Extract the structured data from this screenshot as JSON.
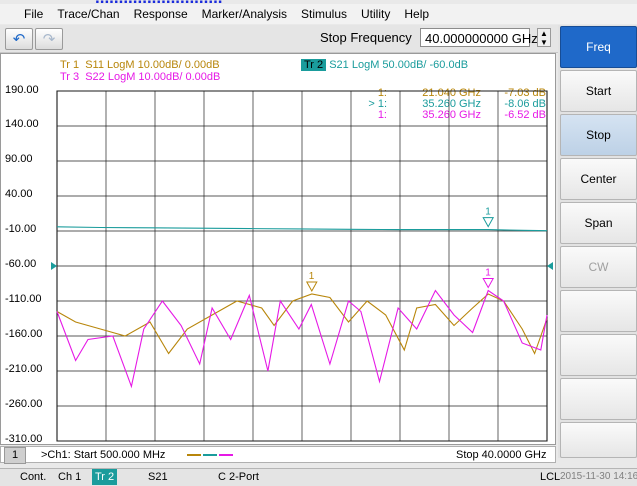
{
  "window_title_fragment": "...........................",
  "menu": [
    "File",
    "Trace/Chan",
    "Response",
    "Marker/Analysis",
    "Stimulus",
    "Utility",
    "Help"
  ],
  "toolbar": {
    "entry_label": "Stop Frequency",
    "entry_value": "40.000000000 GHz",
    "undo_icon": "undo-arrow-icon",
    "redo_icon": "redo-arrow-icon"
  },
  "softkeys": [
    {
      "label": "Freq",
      "state": "header"
    },
    {
      "label": "Start",
      "state": "normal"
    },
    {
      "label": "Stop",
      "state": "active"
    },
    {
      "label": "Center",
      "state": "normal"
    },
    {
      "label": "Span",
      "state": "normal"
    },
    {
      "label": "CW",
      "state": "disabled"
    },
    {
      "label": "",
      "state": "normal"
    },
    {
      "label": "",
      "state": "normal"
    },
    {
      "label": "",
      "state": "normal"
    },
    {
      "label": "",
      "state": "normal"
    }
  ],
  "traces": [
    {
      "id": "Tr 1",
      "text": "S11 LogM 10.00dB/ 0.00dB",
      "color": "#b8860b"
    },
    {
      "id": "Tr 3",
      "text": "S22 LogM 10.00dB/ 0.00dB",
      "color": "#e619e6"
    },
    {
      "id": "Tr 2",
      "text": "S21 LogM 50.00dB/ -60.0dB",
      "color": "#1a9c9c"
    }
  ],
  "markers": [
    {
      "num": "1:",
      "freq": "21.040 GHz",
      "value": "-7.03 dB",
      "color": "#b8860b"
    },
    {
      "num": "> 1:",
      "freq": "35.260 GHz",
      "value": "-8.06 dB",
      "color": "#1a9c9c"
    },
    {
      "num": "1:",
      "freq": "35.260 GHz",
      "value": "-6.52 dB",
      "color": "#e619e6"
    }
  ],
  "y_axis_labels": [
    "190.00",
    "140.00",
    "90.00",
    "40.00",
    "-10.00",
    "-60.00",
    "-110.00",
    "-160.00",
    "-210.00",
    "-260.00",
    "-310.00"
  ],
  "chart_data": {
    "type": "line",
    "x_range_ghz": [
      0.5,
      40.0
    ],
    "ylim": [
      -310,
      190
    ],
    "yticks": [
      190,
      140,
      90,
      40,
      -10,
      -60,
      -110,
      -160,
      -210,
      -260,
      -310
    ],
    "reference_level": -60,
    "series": [
      {
        "name": "S21",
        "color": "#1a9c9c",
        "x": [
          0.5,
          4,
          8,
          12,
          16,
          20,
          24,
          28,
          32,
          35.26,
          38,
          40
        ],
        "y": [
          -4,
          -5,
          -5.5,
          -6,
          -6.5,
          -7,
          -7.5,
          -8,
          -8,
          -8.06,
          -9,
          -9.5
        ]
      },
      {
        "name": "S11",
        "color": "#b8860b",
        "x": [
          0.5,
          2,
          4,
          6,
          8,
          9.5,
          11,
          13,
          15,
          17,
          18,
          19.5,
          21.04,
          22.5,
          24,
          25.5,
          27,
          28.5,
          29.5,
          31,
          32.5,
          34,
          35.26,
          36.5,
          38,
          39,
          40
        ],
        "y": [
          -125,
          -140,
          -150,
          -160,
          -140,
          -185,
          -150,
          -130,
          -110,
          -120,
          -145,
          -110,
          -100,
          -105,
          -140,
          -110,
          -130,
          -180,
          -120,
          -115,
          -145,
          -120,
          -100,
          -110,
          -150,
          -185,
          -135
        ]
      },
      {
        "name": "S22",
        "color": "#e619e6",
        "x": [
          0.5,
          2,
          3,
          5,
          6.5,
          7.5,
          9,
          10.5,
          12,
          13,
          14.5,
          16,
          17.5,
          18.5,
          20,
          21,
          22.5,
          24,
          25,
          26.5,
          28,
          29.5,
          31,
          32.5,
          34,
          35.26,
          36.5,
          38,
          39.5,
          40
        ],
        "y": [
          -125,
          -195,
          -165,
          -160,
          -232,
          -150,
          -110,
          -145,
          -200,
          -120,
          -165,
          -102,
          -210,
          -110,
          -150,
          -115,
          -200,
          -110,
          -125,
          -225,
          -120,
          -150,
          -95,
          -130,
          -155,
          -95,
          -110,
          -170,
          -180,
          -130
        ]
      }
    ]
  },
  "chan_bar": {
    "channel": "1",
    "start_text": ">Ch1:  Start  500.000 MHz",
    "stop_text": "Stop  40.0000 GHz"
  },
  "status_bar": {
    "mode": "Cont.",
    "channel": "Ch 1",
    "trace": "Tr 2",
    "param": "S21",
    "cal": "C  2-Port",
    "remote": "LCL",
    "datetime": "2015-11-30 14:16"
  }
}
